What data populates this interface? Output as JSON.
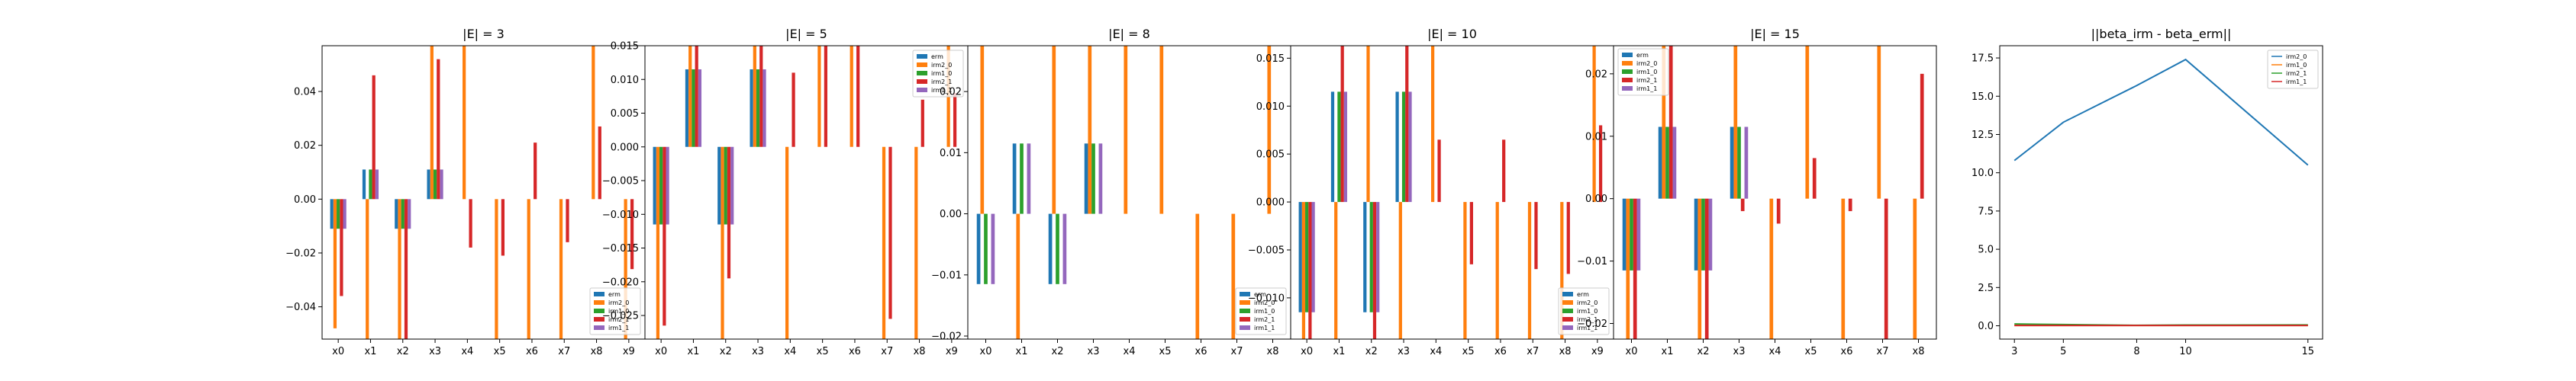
{
  "colors": {
    "erm": "#1f77b4",
    "irm2_0": "#ff7f0e",
    "irm1_0": "#2ca02c",
    "irm2_1": "#d62728",
    "irm1_1": "#9467bd"
  },
  "chart_data": [
    {
      "type": "bar",
      "title": "|E| = 3",
      "categories": [
        "x0",
        "x1",
        "x2",
        "x3",
        "x4",
        "x5",
        "x6",
        "x7",
        "x8",
        "x9"
      ],
      "ylim": [
        -0.052,
        0.057
      ],
      "yticks": [
        -0.04,
        -0.02,
        0.0,
        0.02,
        0.04
      ],
      "ytick_labels": [
        "−0.04",
        "−0.02",
        "0.00",
        "0.02",
        "0.04"
      ],
      "legend": {
        "entries": [
          "erm",
          "irm2_0",
          "irm1_0",
          "irm2_1",
          "irm1_1"
        ],
        "placement": "lower-right"
      },
      "series": [
        {
          "name": "erm",
          "values": [
            -0.011,
            0.011,
            -0.011,
            0.011,
            0,
            0,
            0,
            0,
            0,
            0
          ]
        },
        {
          "name": "irm2_0",
          "values": [
            -0.048,
            -0.052,
            -0.052,
            0.057,
            0.057,
            -0.052,
            -0.052,
            -0.052,
            0.057,
            -0.052
          ]
        },
        {
          "name": "irm1_0",
          "values": [
            -0.011,
            0.011,
            -0.011,
            0.011,
            0,
            0,
            0,
            0,
            0,
            0
          ]
        },
        {
          "name": "irm2_1",
          "values": [
            -0.036,
            0.046,
            -0.052,
            0.052,
            -0.018,
            -0.021,
            0.021,
            -0.016,
            0.027,
            -0.026
          ]
        },
        {
          "name": "irm1_1",
          "values": [
            -0.011,
            0.011,
            -0.011,
            0.011,
            0,
            0,
            0,
            0,
            0,
            0
          ]
        }
      ]
    },
    {
      "type": "bar",
      "title": "|E| = 5",
      "categories": [
        "x0",
        "x1",
        "x2",
        "x3",
        "x4",
        "x5",
        "x6",
        "x7",
        "x8",
        "x9"
      ],
      "ylim": [
        -0.0285,
        0.015
      ],
      "yticks": [
        -0.025,
        -0.02,
        -0.015,
        -0.01,
        -0.005,
        0.0,
        0.005,
        0.01,
        0.015
      ],
      "ytick_labels": [
        "−0.025",
        "−0.020",
        "−0.015",
        "−0.010",
        "−0.005",
        "0.000",
        "0.005",
        "0.010",
        "0.015"
      ],
      "legend": {
        "entries": [
          "erm",
          "irm2_0",
          "irm1_0",
          "irm2_1",
          "irm1_1"
        ],
        "placement": "upper-right"
      },
      "series": [
        {
          "name": "erm",
          "values": [
            -0.0115,
            0.0115,
            -0.0115,
            0.0115,
            0,
            0,
            0,
            0,
            0,
            0
          ]
        },
        {
          "name": "irm2_0",
          "values": [
            -0.0285,
            0.015,
            -0.0285,
            0.015,
            -0.0285,
            0.015,
            0.015,
            -0.0285,
            -0.0285,
            0.015
          ]
        },
        {
          "name": "irm1_0",
          "values": [
            -0.0115,
            0.0115,
            -0.0115,
            0.0115,
            0,
            0,
            0,
            0,
            0,
            0
          ]
        },
        {
          "name": "irm2_1",
          "values": [
            -0.0265,
            0.015,
            -0.0195,
            0.015,
            0.011,
            0.015,
            0.015,
            -0.0255,
            0.007,
            0.008
          ]
        },
        {
          "name": "irm1_1",
          "values": [
            -0.0115,
            0.0115,
            -0.0115,
            0.0115,
            0,
            0,
            0,
            0,
            0,
            0
          ]
        }
      ]
    },
    {
      "type": "bar",
      "title": "|E| = 8",
      "categories": [
        "x0",
        "x1",
        "x2",
        "x3",
        "x4",
        "x5",
        "x6",
        "x7",
        "x8"
      ],
      "ylim": [
        -0.0205,
        0.0275
      ],
      "yticks": [
        -0.02,
        -0.01,
        0.0,
        0.01,
        0.02
      ],
      "ytick_labels": [
        "−0.02",
        "−0.01",
        "0.00",
        "0.01",
        "0.02"
      ],
      "legend": {
        "entries": [
          "erm",
          "irm2_0",
          "irm1_0",
          "irm2_1",
          "irm1_1"
        ],
        "placement": "lower-right"
      },
      "series": [
        {
          "name": "erm",
          "values": [
            -0.0115,
            0.0115,
            -0.0115,
            0.0115,
            0,
            0,
            0,
            0,
            0
          ]
        },
        {
          "name": "irm2_0",
          "values": [
            0.0275,
            -0.0205,
            0.0275,
            0.0275,
            0.0275,
            0.0275,
            -0.0205,
            -0.0205,
            0.0275
          ]
        },
        {
          "name": "irm1_0",
          "values": [
            -0.0115,
            0.0115,
            -0.0115,
            0.0115,
            0,
            0,
            0,
            0,
            0
          ]
        },
        {
          "name": "irm2_1",
          "values": [
            0,
            0,
            0,
            0,
            0,
            0,
            0,
            0,
            0
          ]
        },
        {
          "name": "irm1_1",
          "values": [
            -0.0115,
            0.0115,
            -0.0115,
            0.0115,
            0,
            0,
            0,
            0,
            0
          ]
        }
      ]
    },
    {
      "type": "bar",
      "title": "|E| = 10",
      "categories": [
        "x0",
        "x1",
        "x2",
        "x3",
        "x4",
        "x5",
        "x6",
        "x7",
        "x8",
        "x9"
      ],
      "ylim": [
        -0.0143,
        0.0163
      ],
      "yticks": [
        -0.01,
        -0.005,
        0.0,
        0.005,
        0.01,
        0.015
      ],
      "ytick_labels": [
        "−0.010",
        "−0.005",
        "0.000",
        "0.005",
        "0.010",
        "0.015"
      ],
      "legend": {
        "entries": [
          "erm",
          "irm2_0",
          "irm1_0",
          "irm2_1",
          "irm1_1"
        ],
        "placement": "lower-right"
      },
      "series": [
        {
          "name": "erm",
          "values": [
            -0.0115,
            0.0115,
            -0.0115,
            0.0115,
            0,
            0,
            0,
            0,
            0,
            0
          ]
        },
        {
          "name": "irm2_0",
          "values": [
            -0.0143,
            -0.0143,
            0.0163,
            -0.0143,
            0.0163,
            -0.0143,
            -0.0143,
            -0.0143,
            -0.0143,
            0.0163
          ]
        },
        {
          "name": "irm1_0",
          "values": [
            -0.0115,
            0.0115,
            -0.0115,
            0.0115,
            0,
            0,
            0,
            0,
            0,
            0
          ]
        },
        {
          "name": "irm2_1",
          "values": [
            -0.0143,
            0.0163,
            -0.0143,
            0.0163,
            0.0065,
            -0.0065,
            0.0065,
            -0.007,
            -0.0075,
            0.008
          ]
        },
        {
          "name": "irm1_1",
          "values": [
            -0.0115,
            0.0115,
            -0.0115,
            0.0115,
            0,
            0,
            0,
            0,
            0,
            0
          ]
        }
      ]
    },
    {
      "type": "bar",
      "title": "|E| = 15",
      "categories": [
        "x0",
        "x1",
        "x2",
        "x3",
        "x4",
        "x5",
        "x6",
        "x7",
        "x8"
      ],
      "ylim": [
        -0.0225,
        0.0245
      ],
      "yticks": [
        -0.02,
        -0.01,
        0.0,
        0.01,
        0.02
      ],
      "ytick_labels": [
        "−0.02",
        "−0.01",
        "0.00",
        "0.01",
        "0.02"
      ],
      "legend": {
        "entries": [
          "erm",
          "irm2_0",
          "irm1_0",
          "irm2_1",
          "irm1_1"
        ],
        "placement": "upper-left"
      },
      "series": [
        {
          "name": "erm",
          "values": [
            -0.0115,
            0.0115,
            -0.0115,
            0.0115,
            0,
            0,
            0,
            0,
            0
          ]
        },
        {
          "name": "irm2_0",
          "values": [
            -0.0225,
            0.0245,
            -0.0225,
            0.0245,
            -0.0225,
            0.0245,
            -0.0225,
            0.0245,
            -0.0225
          ]
        },
        {
          "name": "irm1_0",
          "values": [
            -0.0115,
            0.0115,
            -0.0115,
            0.0115,
            0,
            0,
            0,
            0,
            0
          ]
        },
        {
          "name": "irm2_1",
          "values": [
            -0.0225,
            0.0245,
            -0.0225,
            -0.002,
            -0.004,
            0.0065,
            -0.002,
            -0.0225,
            0.02
          ]
        },
        {
          "name": "irm1_1",
          "values": [
            -0.0115,
            0.0115,
            -0.0115,
            0.0115,
            0,
            0,
            0,
            0,
            0
          ]
        }
      ]
    },
    {
      "type": "line",
      "title": "||beta_irm - beta_erm||",
      "x": [
        3,
        5,
        8,
        10,
        15
      ],
      "xticks": [
        3,
        5,
        8,
        10,
        15
      ],
      "ylim": [
        -0.87,
        18.3
      ],
      "yticks": [
        0.0,
        2.5,
        5.0,
        7.5,
        10.0,
        12.5,
        15.0,
        17.5
      ],
      "ytick_labels": [
        "0.0",
        "2.5",
        "5.0",
        "7.5",
        "10.0",
        "12.5",
        "15.0",
        "17.5"
      ],
      "legend": {
        "entries": [
          "irm2_0",
          "irm1_0",
          "irm2_1",
          "irm1_1"
        ],
        "placement": "upper-right"
      },
      "series": [
        {
          "name": "irm2_0",
          "values": [
            10.8,
            13.3,
            15.7,
            17.4,
            10.5
          ]
        },
        {
          "name": "irm1_0",
          "values": [
            0.02,
            0.02,
            0.02,
            0.02,
            0.02
          ]
        },
        {
          "name": "irm2_1",
          "values": [
            0.12,
            0.08,
            0.03,
            0.05,
            0.06
          ]
        },
        {
          "name": "irm1_1",
          "values": [
            0.02,
            0.02,
            0.02,
            0.02,
            0.02
          ]
        }
      ]
    }
  ]
}
